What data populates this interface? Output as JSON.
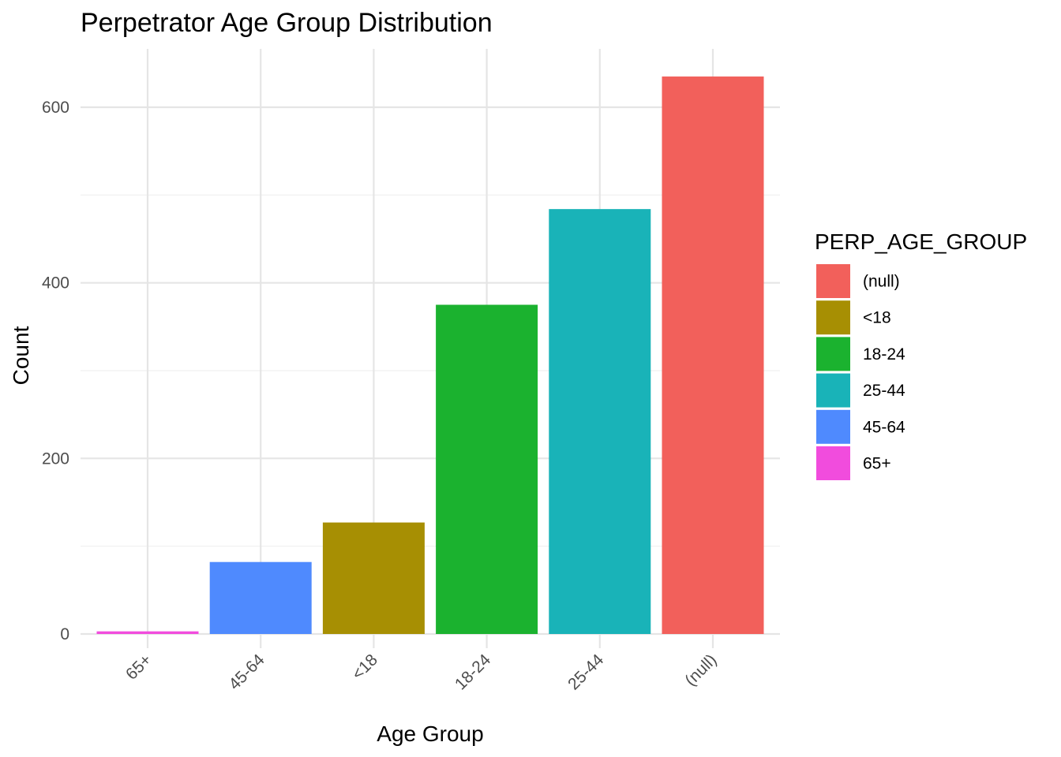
{
  "chart_data": {
    "type": "bar",
    "title": "Perpetrator Age Group Distribution",
    "xlabel": "Age Group",
    "ylabel": "Count",
    "categories": [
      "65+",
      "45-64",
      "<18",
      "18-24",
      "25-44",
      "(null)"
    ],
    "values": [
      3,
      82,
      127,
      375,
      484,
      635
    ],
    "colors": [
      "#F14CDD",
      "#4F8AFE",
      "#A78F03",
      "#1BB22F",
      "#19B3B8",
      "#F2605B"
    ],
    "ylim": [
      0,
      660
    ],
    "yticks": [
      0,
      200,
      400,
      600
    ],
    "grid": true,
    "legend": {
      "title": "PERP_AGE_GROUP",
      "placement": "right",
      "items": [
        {
          "label": "(null)",
          "color": "#F2605B"
        },
        {
          "label": "<18",
          "color": "#A78F03"
        },
        {
          "label": "18-24",
          "color": "#1BB22F"
        },
        {
          "label": "25-44",
          "color": "#19B3B8"
        },
        {
          "label": "45-64",
          "color": "#4F8AFE"
        },
        {
          "label": "65+",
          "color": "#F14CDD"
        }
      ]
    }
  }
}
